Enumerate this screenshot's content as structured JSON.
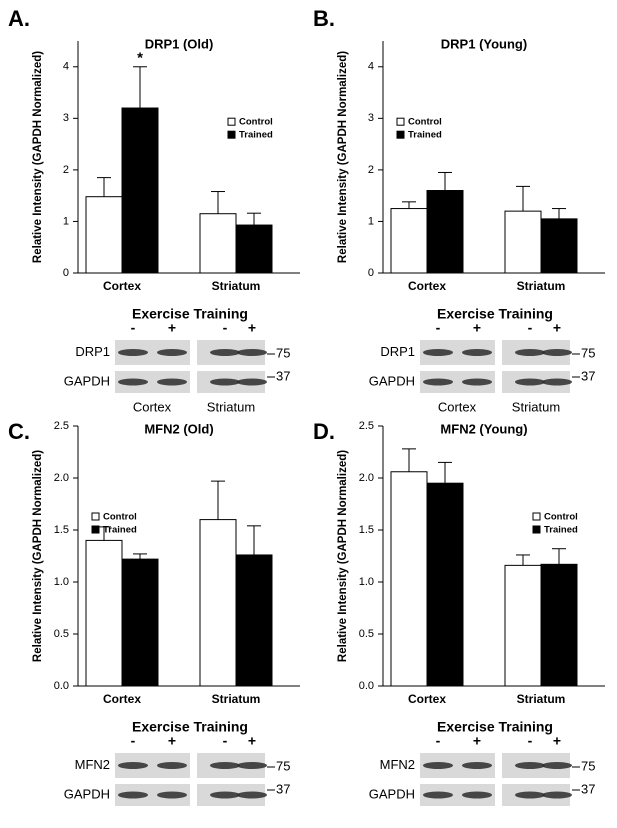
{
  "chart_data": [
    {
      "type": "bar",
      "panel_label": "A.",
      "title": "DRP1 (Old)",
      "ylabel": "Relative Intensity (GAPDH Normalized)",
      "categories": [
        "Cortex",
        "Striatum"
      ],
      "series": [
        {
          "name": "Control",
          "color": "#ffffff",
          "values": [
            1.48,
            1.15
          ],
          "errors": [
            0.37,
            0.43
          ]
        },
        {
          "name": "Trained",
          "color": "#000000",
          "values": [
            3.2,
            0.93
          ],
          "errors": [
            0.8,
            0.23
          ]
        }
      ],
      "ylim": [
        0,
        4.5
      ],
      "yticks": [
        0,
        1,
        2,
        3,
        4
      ],
      "legend": "right",
      "annotation": {
        "text": "*",
        "category": "Cortex",
        "series": "Trained"
      }
    },
    {
      "type": "bar",
      "panel_label": "B.",
      "title": "DRP1 (Young)",
      "ylabel": "Relative Intensity (GAPDH Normalized)",
      "categories": [
        "Cortex",
        "Striatum"
      ],
      "series": [
        {
          "name": "Control",
          "color": "#ffffff",
          "values": [
            1.25,
            1.2
          ],
          "errors": [
            0.13,
            0.48
          ]
        },
        {
          "name": "Trained",
          "color": "#000000",
          "values": [
            1.6,
            1.05
          ],
          "errors": [
            0.35,
            0.2
          ]
        }
      ],
      "ylim": [
        0,
        4.5
      ],
      "yticks": [
        0,
        1,
        2,
        3,
        4
      ],
      "legend": "left"
    },
    {
      "type": "bar",
      "panel_label": "C.",
      "title": "MFN2 (Old)",
      "ylabel": "Relative Intensity (GAPDH Normalized)",
      "categories": [
        "Cortex",
        "Striatum"
      ],
      "series": [
        {
          "name": "Control",
          "color": "#ffffff",
          "values": [
            1.4,
            1.6
          ],
          "errors": [
            0.13,
            0.37
          ]
        },
        {
          "name": "Trained",
          "color": "#000000",
          "values": [
            1.22,
            1.26
          ],
          "errors": [
            0.05,
            0.28
          ]
        }
      ],
      "ylim": [
        0,
        2.5
      ],
      "yticks": [
        {
          "value": 0,
          "label": "0.0"
        },
        {
          "value": 0.5,
          "label": "0.5"
        },
        {
          "value": 1,
          "label": "1.0"
        },
        {
          "value": 1.5,
          "label": "1.5"
        },
        {
          "value": 2,
          "label": "2.0"
        },
        {
          "value": 2.5,
          "label": "2.5"
        }
      ],
      "legend": "left"
    },
    {
      "type": "bar",
      "panel_label": "D.",
      "title": "MFN2 (Young)",
      "ylabel": "Relative Intensity (GAPDH Normalized)",
      "categories": [
        "Cortex",
        "Striatum"
      ],
      "series": [
        {
          "name": "Control",
          "color": "#ffffff",
          "values": [
            2.06,
            1.16
          ],
          "errors": [
            0.22,
            0.1
          ]
        },
        {
          "name": "Trained",
          "color": "#000000",
          "values": [
            1.95,
            1.17
          ],
          "errors": [
            0.2,
            0.15
          ]
        }
      ],
      "ylim": [
        0,
        2.5
      ],
      "yticks": [
        {
          "value": 0,
          "label": "0.0"
        },
        {
          "value": 0.5,
          "label": "0.5"
        },
        {
          "value": 1,
          "label": "1.0"
        },
        {
          "value": 1.5,
          "label": "1.5"
        },
        {
          "value": 2,
          "label": "2.0"
        },
        {
          "value": 2.5,
          "label": "2.5"
        }
      ],
      "legend": "right"
    }
  ],
  "blots": [
    {
      "heading": "Exercise Training",
      "signs": [
        "-",
        "+",
        "-",
        "+"
      ],
      "rows": [
        "DRP1",
        "GAPDH"
      ],
      "markers": [
        "75",
        "37"
      ],
      "groups": [
        "Cortex",
        "Striatum"
      ]
    },
    {
      "heading": "Exercise Training",
      "signs": [
        "-",
        "+",
        "-",
        "+"
      ],
      "rows": [
        "DRP1",
        "GAPDH"
      ],
      "markers": [
        "75",
        "37"
      ],
      "groups": [
        "Cortex",
        "Striatum"
      ]
    },
    {
      "heading": "Exercise Training",
      "signs": [
        "-",
        "+",
        "-",
        "+"
      ],
      "rows": [
        "MFN2",
        "GAPDH"
      ],
      "markers": [
        "75",
        "37"
      ]
    },
    {
      "heading": "Exercise Training",
      "signs": [
        "-",
        "+",
        "-",
        "+"
      ],
      "rows": [
        "MFN2",
        "GAPDH"
      ],
      "markers": [
        "75",
        "37"
      ]
    }
  ]
}
